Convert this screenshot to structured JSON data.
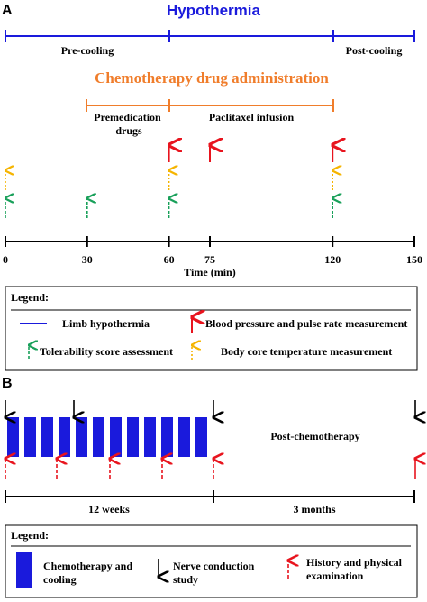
{
  "panel_a": {
    "label": "A",
    "title": "Hypothermia",
    "pre_cooling": "Pre-cooling",
    "post_cooling": "Post-cooling",
    "chemo_title": "Chemotherapy drug administration",
    "premedication_line1": "Premedication",
    "premedication_line2": "drugs",
    "paclitaxel": "Paclitaxel infusion",
    "axis_title": "Time (min)",
    "ticks": [
      "0",
      "30",
      "60",
      "75",
      "120",
      "150"
    ],
    "bp_times_min": [
      60,
      75,
      120
    ],
    "temp_times_min": [
      0,
      60,
      120
    ],
    "tolerability_times_min": [
      0,
      30,
      60,
      120
    ],
    "legend": {
      "title": "Legend:",
      "limb": "Limb hypothermia",
      "bp": "Blood pressure and pulse rate measurement",
      "tolerability": "Tolerability score assessment",
      "temperature": "Body core temperature measurement"
    }
  },
  "panel_b": {
    "label": "B",
    "post_chemo": "Post-chemotherapy",
    "period_weeks": "12 weeks",
    "period_months": "3 months",
    "chemo_block_count": 12,
    "legend": {
      "title": "Legend:",
      "chemo_line1": "Chemotherapy and",
      "chemo_line2": "cooling",
      "nerve_line1": "Nerve conduction",
      "nerve_line2": "study",
      "history_line1": "History and physical",
      "history_line2": "examination"
    }
  },
  "colors": {
    "blue": "#1a1adc",
    "orange": "#f07d2b",
    "red": "#e8141e",
    "green": "#19a05a",
    "yellow": "#f5b400",
    "black": "#000000"
  }
}
